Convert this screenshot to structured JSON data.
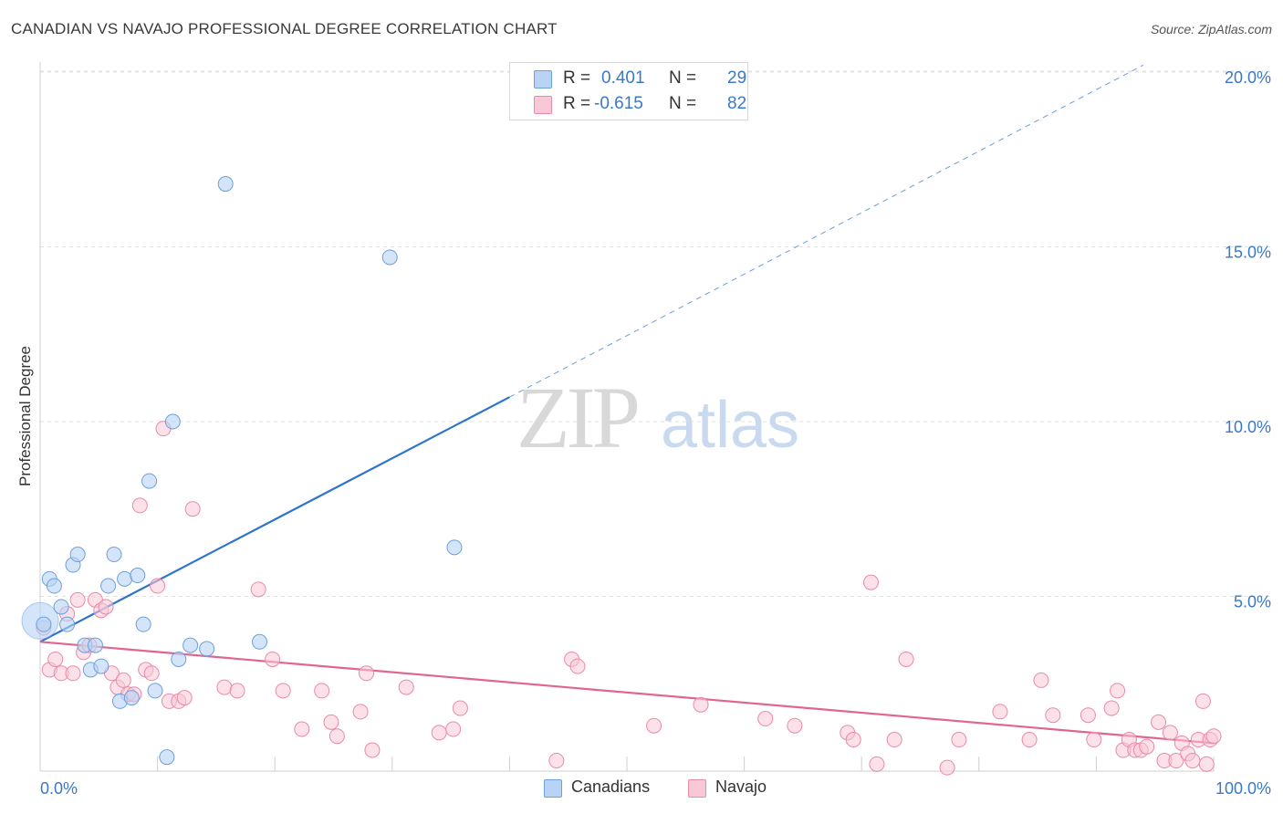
{
  "header": {
    "title": "CANADIAN VS NAVAJO PROFESSIONAL DEGREE CORRELATION CHART",
    "source": "Source: ZipAtlas.com"
  },
  "legend": {
    "canadians": {
      "r_label": "R =",
      "r_value": "0.401",
      "n_label": "N =",
      "n_value": "29"
    },
    "navajo": {
      "r_label": "R =",
      "r_value": "-0.615",
      "n_label": "N =",
      "n_value": "82"
    }
  },
  "watermark": {
    "zip": "ZIP",
    "atlas": "atlas"
  },
  "colors": {
    "canadians_fill": "#b8d3f5",
    "canadians_stroke": "#6d9fdc",
    "canadians_line": "#2e74cc",
    "navajo_fill": "#f9c8d6",
    "navajo_stroke": "#e88aa8",
    "navajo_line": "#e0668f",
    "axis_label": "#3a78c8",
    "grid": "#e2e2e2"
  },
  "chart_data": {
    "type": "scatter",
    "title": "CANADIAN VS NAVAJO PROFESSIONAL DEGREE CORRELATION CHART",
    "xlabel": "",
    "ylabel": "Professional Degree",
    "xlim": [
      0,
      100
    ],
    "ylim": [
      0,
      20.5
    ],
    "x_tick_labels": [
      {
        "value": 0,
        "label": "0.0%"
      },
      {
        "value": 100,
        "label": "100.0%"
      }
    ],
    "y_tick_labels": [
      {
        "value": 5,
        "label": "5.0%"
      },
      {
        "value": 10,
        "label": "10.0%"
      },
      {
        "value": 15,
        "label": "15.0%"
      },
      {
        "value": 20,
        "label": "20.0%"
      }
    ],
    "series": [
      {
        "name": "Canadians",
        "points": [
          [
            0.3,
            4.2
          ],
          [
            0.8,
            5.5
          ],
          [
            1.2,
            5.3
          ],
          [
            1.8,
            4.7
          ],
          [
            2.3,
            4.2
          ],
          [
            2.8,
            5.9
          ],
          [
            3.2,
            6.2
          ],
          [
            3.8,
            3.6
          ],
          [
            4.3,
            2.9
          ],
          [
            4.7,
            3.6
          ],
          [
            5.2,
            3.0
          ],
          [
            5.8,
            5.3
          ],
          [
            6.3,
            6.2
          ],
          [
            6.8,
            2.0
          ],
          [
            7.2,
            5.5
          ],
          [
            7.8,
            2.1
          ],
          [
            8.3,
            5.6
          ],
          [
            8.8,
            4.2
          ],
          [
            9.3,
            8.3
          ],
          [
            9.8,
            2.3
          ],
          [
            10.8,
            0.4
          ],
          [
            11.3,
            10.0
          ],
          [
            11.8,
            3.2
          ],
          [
            12.8,
            3.6
          ],
          [
            14.2,
            3.5
          ],
          [
            15.8,
            16.8
          ],
          [
            18.7,
            3.7
          ],
          [
            29.8,
            14.7
          ],
          [
            35.3,
            6.4
          ]
        ]
      },
      {
        "name": "Navajo",
        "points": [
          [
            0.3,
            4.1
          ],
          [
            0.8,
            2.9
          ],
          [
            1.3,
            3.2
          ],
          [
            1.8,
            2.8
          ],
          [
            2.3,
            4.5
          ],
          [
            2.8,
            2.8
          ],
          [
            3.2,
            4.9
          ],
          [
            3.7,
            3.4
          ],
          [
            4.2,
            3.6
          ],
          [
            4.7,
            4.9
          ],
          [
            5.2,
            4.6
          ],
          [
            5.6,
            4.7
          ],
          [
            6.1,
            2.8
          ],
          [
            6.6,
            2.4
          ],
          [
            7.1,
            2.6
          ],
          [
            7.5,
            2.2
          ],
          [
            8.0,
            2.2
          ],
          [
            8.5,
            7.6
          ],
          [
            9.0,
            2.9
          ],
          [
            9.5,
            2.8
          ],
          [
            10.0,
            5.3
          ],
          [
            10.5,
            9.8
          ],
          [
            11.0,
            2.0
          ],
          [
            11.8,
            2.0
          ],
          [
            12.3,
            2.1
          ],
          [
            13.0,
            7.5
          ],
          [
            15.7,
            2.4
          ],
          [
            16.8,
            2.3
          ],
          [
            18.6,
            5.2
          ],
          [
            19.8,
            3.2
          ],
          [
            20.7,
            2.3
          ],
          [
            22.3,
            1.2
          ],
          [
            24.0,
            2.3
          ],
          [
            24.8,
            1.4
          ],
          [
            25.3,
            1.0
          ],
          [
            27.3,
            1.7
          ],
          [
            27.8,
            2.8
          ],
          [
            28.3,
            0.6
          ],
          [
            31.2,
            2.4
          ],
          [
            34.0,
            1.1
          ],
          [
            35.2,
            1.2
          ],
          [
            35.8,
            1.8
          ],
          [
            44.0,
            0.3
          ],
          [
            45.3,
            3.2
          ],
          [
            45.8,
            3.0
          ],
          [
            52.3,
            1.3
          ],
          [
            56.3,
            1.9
          ],
          [
            61.8,
            1.5
          ],
          [
            64.3,
            1.3
          ],
          [
            68.8,
            1.1
          ],
          [
            69.3,
            0.9
          ],
          [
            70.8,
            5.4
          ],
          [
            71.3,
            0.2
          ],
          [
            72.8,
            0.9
          ],
          [
            73.8,
            3.2
          ],
          [
            77.3,
            0.1
          ],
          [
            78.3,
            0.9
          ],
          [
            81.8,
            1.7
          ],
          [
            84.3,
            0.9
          ],
          [
            85.3,
            2.6
          ],
          [
            86.3,
            1.6
          ],
          [
            89.3,
            1.6
          ],
          [
            89.8,
            0.9
          ],
          [
            91.3,
            1.8
          ],
          [
            91.8,
            2.3
          ],
          [
            92.3,
            0.6
          ],
          [
            92.8,
            0.9
          ],
          [
            93.3,
            0.6
          ],
          [
            93.8,
            0.6
          ],
          [
            94.3,
            0.7
          ],
          [
            95.3,
            1.4
          ],
          [
            95.8,
            0.3
          ],
          [
            96.3,
            1.1
          ],
          [
            96.8,
            0.3
          ],
          [
            97.3,
            0.8
          ],
          [
            97.8,
            0.5
          ],
          [
            98.2,
            0.3
          ],
          [
            98.7,
            0.9
          ],
          [
            99.1,
            2.0
          ],
          [
            99.4,
            0.2
          ],
          [
            99.7,
            0.9
          ],
          [
            100.0,
            1.0
          ]
        ]
      }
    ],
    "trendlines": [
      {
        "series": "Canadians",
        "solid_from": [
          0,
          3.7
        ],
        "solid_to": [
          40,
          10.7
        ],
        "dashed_to": [
          94,
          20.2
        ]
      },
      {
        "series": "Navajo",
        "from": [
          0,
          3.7
        ],
        "to": [
          100,
          0.8
        ]
      }
    ],
    "big_point": {
      "series": "Canadians",
      "x": 0,
      "y": 4.3
    },
    "legend_placement": "top-center",
    "grid": true
  },
  "bottom_legend": {
    "canadians": "Canadians",
    "navajo": "Navajo"
  }
}
